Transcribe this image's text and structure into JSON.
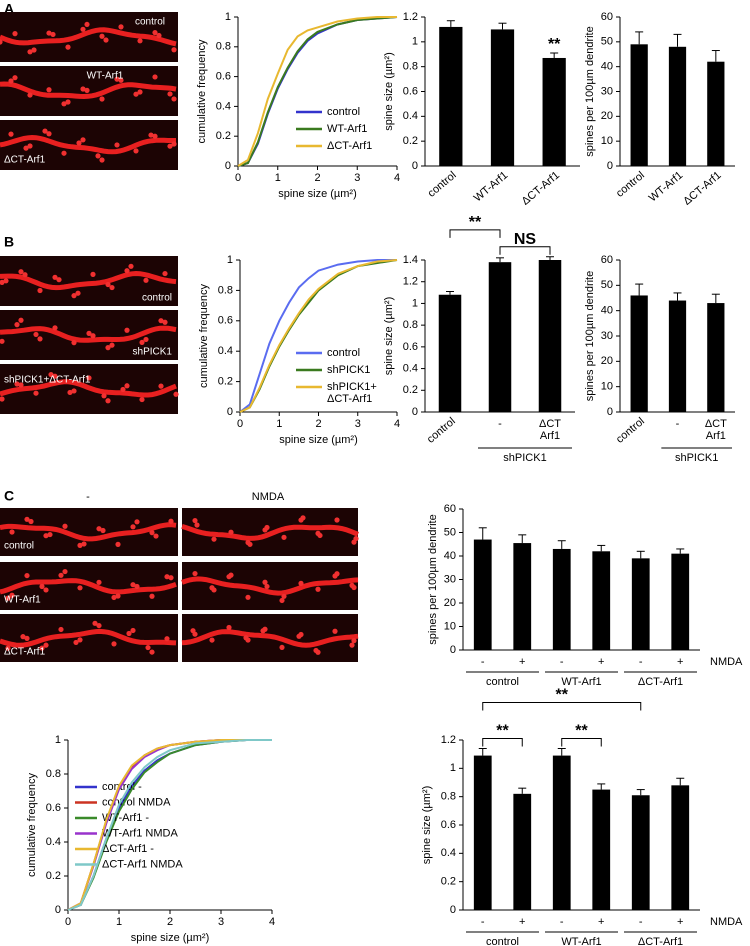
{
  "panels": [
    {
      "label": "A",
      "image_labels": [
        "control",
        "WT-Arf1",
        "ΔCT-Arf1"
      ]
    },
    {
      "label": "B",
      "image_labels": [
        "control",
        "shPICK1",
        "shPICK1+ΔCT-Arf1"
      ]
    },
    {
      "label": "C",
      "column_labels": [
        "-",
        "NMDA"
      ],
      "image_labels": [
        "control",
        "WT-Arf1",
        "ΔCT-Arf1"
      ]
    }
  ],
  "chart_data": [
    {
      "type": "line",
      "y_label": "cumulative frequency",
      "x_label": "spine size (µm²)",
      "x": [
        0,
        0.25,
        0.5,
        0.75,
        1,
        1.25,
        1.5,
        1.75,
        2,
        2.5,
        3,
        3.5,
        4
      ],
      "xlim": [
        0,
        4
      ],
      "xticks": [
        0,
        1,
        2,
        3,
        4
      ],
      "ylim": [
        0,
        1
      ],
      "yticks": [
        0,
        0.2,
        0.4,
        0.6,
        0.8,
        1
      ],
      "series": [
        {
          "name": "control",
          "color": "#3333cc",
          "values": [
            0,
            0.02,
            0.15,
            0.35,
            0.52,
            0.65,
            0.76,
            0.84,
            0.89,
            0.95,
            0.98,
            0.99,
            1
          ]
        },
        {
          "name": "WT-Arf1",
          "color": "#3a7a1f",
          "values": [
            0,
            0.02,
            0.16,
            0.36,
            0.53,
            0.66,
            0.77,
            0.85,
            0.9,
            0.95,
            0.98,
            0.99,
            1
          ]
        },
        {
          "name": "ΔCT-Arf1",
          "color": "#e8b830",
          "values": [
            0,
            0.04,
            0.22,
            0.45,
            0.62,
            0.78,
            0.87,
            0.91,
            0.93,
            0.97,
            0.99,
            1,
            1
          ]
        }
      ]
    },
    {
      "type": "bar",
      "y_label": "spine size (µm²)",
      "categories": [
        "control",
        "WT-Arf1",
        "ΔCT-Arf1"
      ],
      "values": [
        1.12,
        1.1,
        0.87
      ],
      "errors": [
        0.05,
        0.05,
        0.04
      ],
      "color": "#000000",
      "ylim": [
        0,
        1.2
      ],
      "yticks": [
        0,
        0.2,
        0.4,
        0.6,
        0.8,
        1,
        1.2
      ],
      "annotations": [
        {
          "text": "**",
          "from": 2,
          "to": 2
        }
      ]
    },
    {
      "type": "bar",
      "y_label": "spines per 100µm dendrite",
      "categories": [
        "control",
        "WT-Arf1",
        "ΔCT-Arf1"
      ],
      "values": [
        49,
        48,
        42
      ],
      "errors": [
        5,
        5,
        4.5
      ],
      "color": "#000000",
      "ylim": [
        0,
        60
      ],
      "yticks": [
        0,
        10,
        20,
        30,
        40,
        50,
        60
      ]
    },
    {
      "type": "line",
      "y_label": "cumulative frequency",
      "x_label": "spine size (µm²)",
      "x": [
        0,
        0.25,
        0.5,
        0.75,
        1,
        1.25,
        1.5,
        1.75,
        2,
        2.5,
        3,
        3.5,
        4
      ],
      "xlim": [
        0,
        4
      ],
      "xticks": [
        0,
        1,
        2,
        3,
        4
      ],
      "ylim": [
        0,
        1
      ],
      "yticks": [
        0,
        0.2,
        0.4,
        0.6,
        0.8,
        1
      ],
      "series": [
        {
          "name": "control",
          "color": "#5a6cf0",
          "values": [
            0,
            0.05,
            0.25,
            0.45,
            0.6,
            0.72,
            0.82,
            0.88,
            0.93,
            0.97,
            0.99,
            1,
            1
          ]
        },
        {
          "name": "shPICK1",
          "color": "#3a7a1f",
          "values": [
            0,
            0.03,
            0.15,
            0.3,
            0.43,
            0.54,
            0.64,
            0.72,
            0.8,
            0.9,
            0.96,
            0.98,
            1
          ]
        },
        {
          "name": "shPICK1+\nΔCT-Arf1",
          "color": "#e8b830",
          "values": [
            0,
            0.03,
            0.16,
            0.31,
            0.44,
            0.55,
            0.65,
            0.74,
            0.81,
            0.91,
            0.96,
            0.99,
            1
          ]
        }
      ]
    },
    {
      "type": "bar",
      "y_label": "spine size (µm²)",
      "categories": [
        "control",
        "-",
        "ΔCT\nArf1"
      ],
      "groups": [
        {
          "name": "shPICK1",
          "categories": [
            1,
            2
          ]
        }
      ],
      "values": [
        1.08,
        1.38,
        1.4
      ],
      "errors": [
        0.03,
        0.04,
        0.03
      ],
      "color": "#000000",
      "ylim": [
        0,
        1.4
      ],
      "yticks": [
        0,
        0.2,
        0.4,
        0.6,
        0.8,
        1,
        1.2,
        1.4
      ],
      "annotations": [
        {
          "text": "**",
          "from": 0,
          "to": 1
        },
        {
          "text": "NS",
          "from": 1,
          "to": 2
        }
      ]
    },
    {
      "type": "bar",
      "y_label": "spines per 100µm dendrite",
      "categories": [
        "control",
        "-",
        "ΔCT\nArf1"
      ],
      "groups": [
        {
          "name": "shPICK1",
          "categories": [
            1,
            2
          ]
        }
      ],
      "values": [
        46,
        44,
        43
      ],
      "errors": [
        4.5,
        3,
        3.5
      ],
      "color": "#000000",
      "ylim": [
        0,
        60
      ],
      "yticks": [
        0,
        10,
        20,
        30,
        40,
        50,
        60
      ]
    },
    {
      "type": "bar",
      "y_label": "spines per 100µm dendrite",
      "categories": [
        "-",
        "+",
        "-",
        "+",
        "-",
        "+"
      ],
      "groups": [
        {
          "name": "control",
          "categories": [
            0,
            1
          ]
        },
        {
          "name": "WT-Arf1",
          "categories": [
            2,
            3
          ]
        },
        {
          "name": "ΔCT-Arf1",
          "categories": [
            4,
            5
          ]
        }
      ],
      "x_row_label": "NMDA",
      "values": [
        47,
        45.5,
        43,
        42,
        39,
        41
      ],
      "errors": [
        5,
        3.5,
        3.5,
        2.5,
        3,
        2
      ],
      "color": "#000000",
      "ylim": [
        0,
        60
      ],
      "yticks": [
        0,
        10,
        20,
        30,
        40,
        50,
        60
      ]
    },
    {
      "type": "line",
      "y_label": "cumulative frequency",
      "x_label": "spine size (µm²)",
      "x": [
        0,
        0.25,
        0.5,
        0.75,
        1,
        1.25,
        1.5,
        1.75,
        2,
        2.5,
        3,
        3.5,
        4
      ],
      "xlim": [
        0,
        4
      ],
      "xticks": [
        0,
        1,
        2,
        3,
        4
      ],
      "ylim": [
        0,
        1
      ],
      "yticks": [
        0,
        0.2,
        0.4,
        0.6,
        0.8,
        1
      ],
      "series": [
        {
          "name": "control -",
          "color": "#3333cc",
          "values": [
            0,
            0.03,
            0.2,
            0.42,
            0.6,
            0.73,
            0.82,
            0.88,
            0.92,
            0.97,
            0.99,
            1,
            1
          ]
        },
        {
          "name": "control NMDA",
          "color": "#cc3322",
          "values": [
            0,
            0.04,
            0.27,
            0.52,
            0.72,
            0.84,
            0.91,
            0.95,
            0.97,
            0.99,
            1,
            1,
            1
          ]
        },
        {
          "name": "WT-Arf1 -",
          "color": "#3a8a2a",
          "values": [
            0,
            0.03,
            0.19,
            0.4,
            0.58,
            0.71,
            0.81,
            0.87,
            0.92,
            0.97,
            0.99,
            1,
            1
          ]
        },
        {
          "name": "WT-Arf1 NMDA",
          "color": "#9933cc",
          "values": [
            0,
            0.04,
            0.26,
            0.51,
            0.71,
            0.83,
            0.9,
            0.94,
            0.97,
            0.99,
            1,
            1,
            1
          ]
        },
        {
          "name": "ΔCT-Arf1 -",
          "color": "#e8b830",
          "values": [
            0,
            0.04,
            0.27,
            0.53,
            0.73,
            0.85,
            0.91,
            0.95,
            0.97,
            0.99,
            1,
            1,
            1
          ]
        },
        {
          "name": "ΔCT-Arf1 NMDA",
          "color": "#7fc8c8",
          "values": [
            0,
            0.03,
            0.2,
            0.42,
            0.62,
            0.75,
            0.84,
            0.9,
            0.94,
            0.98,
            0.99,
            1,
            1
          ]
        }
      ]
    },
    {
      "type": "bar",
      "y_label": "spine size (µm²)",
      "categories": [
        "-",
        "+",
        "-",
        "+",
        "-",
        "+"
      ],
      "groups": [
        {
          "name": "control",
          "categories": [
            0,
            1
          ]
        },
        {
          "name": "WT-Arf1",
          "categories": [
            2,
            3
          ]
        },
        {
          "name": "ΔCT-Arf1",
          "categories": [
            4,
            5
          ]
        }
      ],
      "x_row_label": "NMDA",
      "values": [
        1.09,
        0.82,
        1.09,
        0.85,
        0.81,
        0.88
      ],
      "errors": [
        0.05,
        0.04,
        0.05,
        0.04,
        0.04,
        0.05
      ],
      "color": "#000000",
      "ylim": [
        0,
        1.2
      ],
      "yticks": [
        0,
        0.2,
        0.4,
        0.6,
        0.8,
        1,
        1.2
      ],
      "annotations": [
        {
          "text": "**",
          "from": 0,
          "to": 4
        },
        {
          "text": "**",
          "from": 0,
          "to": 1
        },
        {
          "text": "**",
          "from": 2,
          "to": 3
        }
      ]
    }
  ]
}
